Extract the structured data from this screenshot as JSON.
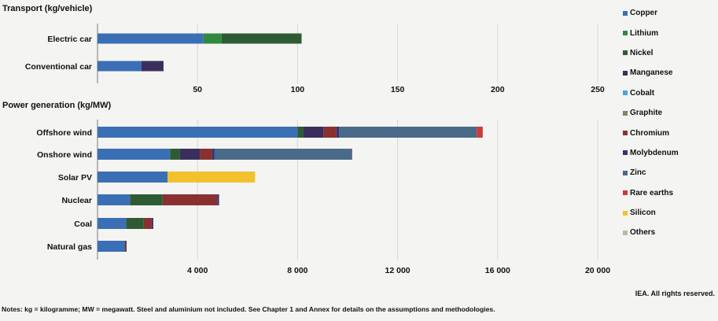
{
  "colors": {
    "Copper": "#3b6fb5",
    "Lithium": "#2f8a3e",
    "Nickel": "#2e5b34",
    "Manganese": "#3a2f5c",
    "Cobalt": "#4da3dc",
    "Graphite": "#7a8a66",
    "Chromium": "#8a3030",
    "Molybdenum": "#3a3270",
    "Zinc": "#4a6a8a",
    "Rare earths": "#cc3b3b",
    "Silicon": "#f2c12e",
    "Others": "#c2b8a2"
  },
  "legend": [
    "Copper",
    "Lithium",
    "Nickel",
    "Manganese",
    "Cobalt",
    "Graphite",
    "Chromium",
    "Molybdenum",
    "Zinc",
    "Rare earths",
    "Silicon",
    "Others"
  ],
  "credit": "IEA. All rights reserved.",
  "notes": "Notes: kg = kilogramme; MW = megawatt. Steel and aluminium not included. See Chapter 1 and Annex for details on the assumptions and methodologies.",
  "chart_data": [
    {
      "type": "bar",
      "orientation": "horizontal",
      "stacked": true,
      "title": "Transport (kg/vehicle)",
      "categories": [
        "Electric car",
        "Conventional car"
      ],
      "xlim": [
        0,
        250
      ],
      "xticks": [
        50,
        100,
        150,
        200,
        250
      ],
      "xtick_labels": [
        "50",
        "100",
        "150",
        "200",
        "250"
      ],
      "series": [
        {
          "name": "Copper",
          "values": [
            53,
            22
          ]
        },
        {
          "name": "Lithium",
          "values": [
            9,
            0
          ]
        },
        {
          "name": "Nickel",
          "values": [
            40,
            0
          ]
        },
        {
          "name": "Manganese",
          "values": [
            0,
            11
          ]
        },
        {
          "name": "Cobalt",
          "values": [
            0,
            0
          ]
        },
        {
          "name": "Graphite",
          "values": [
            0,
            0
          ]
        },
        {
          "name": "Chromium",
          "values": [
            0,
            0
          ]
        },
        {
          "name": "Molybdenum",
          "values": [
            0,
            0
          ]
        },
        {
          "name": "Zinc",
          "values": [
            0,
            0
          ]
        },
        {
          "name": "Rare earths",
          "values": [
            0,
            0
          ]
        },
        {
          "name": "Silicon",
          "values": [
            0,
            0
          ]
        },
        {
          "name": "Others",
          "values": [
            0,
            0
          ]
        }
      ]
    },
    {
      "type": "bar",
      "orientation": "horizontal",
      "stacked": true,
      "title": "Power generation (kg/MW)",
      "categories": [
        "Offshore wind",
        "Onshore wind",
        "Solar PV",
        "Nuclear",
        "Coal",
        "Natural gas"
      ],
      "xlim": [
        0,
        20000
      ],
      "xticks": [
        4000,
        8000,
        12000,
        16000,
        20000
      ],
      "xtick_labels": [
        "4 000",
        "8 000",
        "12 000",
        "16 000",
        "20 000"
      ],
      "series": [
        {
          "name": "Copper",
          "values": [
            8000,
            2900,
            2800,
            1300,
            1150,
            1100
          ]
        },
        {
          "name": "Lithium",
          "values": [
            0,
            0,
            0,
            0,
            0,
            0
          ]
        },
        {
          "name": "Nickel",
          "values": [
            240,
            400,
            0,
            1300,
            700,
            16
          ]
        },
        {
          "name": "Manganese",
          "values": [
            790,
            800,
            0,
            0,
            0,
            0
          ]
        },
        {
          "name": "Cobalt",
          "values": [
            0,
            0,
            0,
            0,
            0,
            0
          ]
        },
        {
          "name": "Graphite",
          "values": [
            0,
            0,
            0,
            0,
            0,
            0
          ]
        },
        {
          "name": "Chromium",
          "values": [
            525,
            470,
            0,
            2190,
            310,
            48
          ]
        },
        {
          "name": "Molybdenum",
          "values": [
            110,
            100,
            0,
            70,
            70,
            0
          ]
        },
        {
          "name": "Zinc",
          "values": [
            5500,
            5500,
            0,
            0,
            0,
            0
          ]
        },
        {
          "name": "Rare earths",
          "values": [
            239,
            14,
            0,
            0,
            0,
            0
          ]
        },
        {
          "name": "Silicon",
          "values": [
            0,
            0,
            3500,
            0,
            0,
            0
          ]
        },
        {
          "name": "Others",
          "values": [
            0,
            0,
            0,
            0,
            0,
            0
          ]
        }
      ]
    }
  ]
}
